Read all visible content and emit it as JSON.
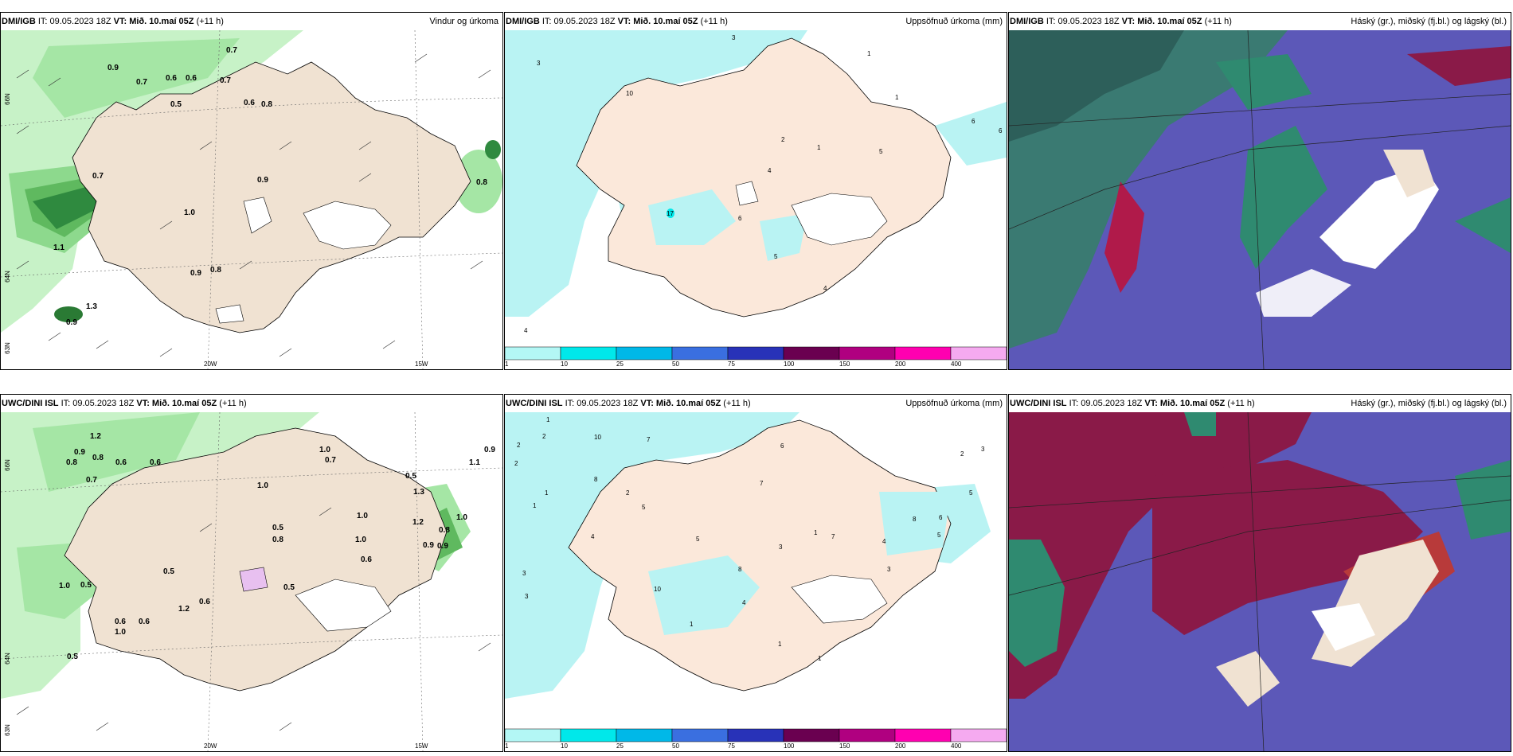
{
  "panels": [
    {
      "model": "DMI/IGB",
      "it": "IT: 09.05.2023 18Z",
      "vt": "VT: Mið. 10.maí 05Z",
      "lead": "(+11 h)",
      "title": "Vindur og úrkoma"
    },
    {
      "model": "DMI/IGB",
      "it": "IT: 09.05.2023 18Z",
      "vt": "VT: Mið. 10.maí 05Z",
      "lead": "(+11 h)",
      "title": "Uppsöfnuð úrkoma (mm)"
    },
    {
      "model": "DMI/IGB",
      "it": "IT: 09.05.2023 18Z",
      "vt": "VT: Mið. 10.maí 05Z",
      "lead": "(+11 h)",
      "title": "Háský (gr.), miðský (fj.bl.) og lágský (bl.)"
    },
    {
      "model": "UWC/DINI ISL",
      "it": "IT: 09.05.2023 18Z",
      "vt": "VT: Mið. 10.maí 05Z",
      "lead": "(+11 h)",
      "title": ""
    },
    {
      "model": "UWC/DINI ISL",
      "it": "IT: 09.05.2023 18Z",
      "vt": "VT: Mið. 10.maí 05Z",
      "lead": "(+11 h)",
      "title": "Uppsöfnuð úrkoma (mm)"
    },
    {
      "model": "UWC/DINI ISL",
      "it": "IT: 09.05.2023 18Z",
      "vt": "VT: Mið. 10.maí 05Z",
      "lead": "(+11 h)",
      "title": "Háský (gr.), miðský (fj.bl.) og lágský (bl.)"
    }
  ],
  "axes": {
    "lat_66": "66N",
    "lat_64": "64N",
    "lat_63": "63N",
    "lon_20": "20W",
    "lon_15": "15W"
  },
  "colorbar": {
    "labels": [
      "1",
      "10",
      "25",
      "50",
      "75",
      "100",
      "150",
      "200",
      "400"
    ],
    "colors": [
      "#b3f7f5",
      "#00e8ea",
      "#00b8e8",
      "#3a6fe0",
      "#2832b8",
      "#6a0050",
      "#b00080",
      "#ff00b0",
      "#f5aaf0"
    ]
  },
  "wind_values_dmi": [
    "0.7",
    "0.9",
    "0.7",
    "0.6",
    "0.6",
    "0.7",
    "0.5",
    "0.6",
    "0.8",
    "0.7",
    "0.9",
    "1.0",
    "0.9",
    "0.8",
    "0.8",
    "1.1",
    "1.3",
    "0.9"
  ],
  "wind_values_uwc": [
    "1.2",
    "0.8",
    "0.9",
    "0.8",
    "0.6",
    "0.6",
    "0.7",
    "1.0",
    "0.7",
    "1.0",
    "1.0",
    "0.5",
    "0.8",
    "1.0",
    "0.6",
    "1.2",
    "0.8",
    "0.9",
    "0.5",
    "0.9",
    "1.0",
    "0.9",
    "1.1",
    "0.5",
    "1.0",
    "0.5",
    "0.5",
    "0.6",
    "0.5",
    "1.2",
    "0.6",
    "1.0",
    "0.6",
    "1.3"
  ],
  "accum_values_dmi": [
    "3",
    "3",
    "10",
    "1",
    "2",
    "1",
    "1",
    "5",
    "6",
    "4",
    "6",
    "17",
    "5",
    "4",
    "4",
    "6"
  ],
  "accum_values_uwc": [
    "1",
    "2",
    "2",
    "2",
    "1",
    "1",
    "3",
    "10",
    "8",
    "7",
    "2",
    "5",
    "4",
    "5",
    "7",
    "6",
    "8",
    "1",
    "3",
    "10",
    "5",
    "4",
    "3",
    "8",
    "1",
    "7",
    "1",
    "3",
    "5",
    "6",
    "2",
    "3",
    "4",
    "1"
  ],
  "colors": {
    "land": "#f0e2d2",
    "rain_light": "#b9f0b9",
    "rain_mid": "#6fc96f",
    "rain_dark": "#1f7a2c",
    "sea_cloud": "#5c58b8",
    "high_cloud": "#8a1a48",
    "mid_cloud": "#2f8a70"
  }
}
